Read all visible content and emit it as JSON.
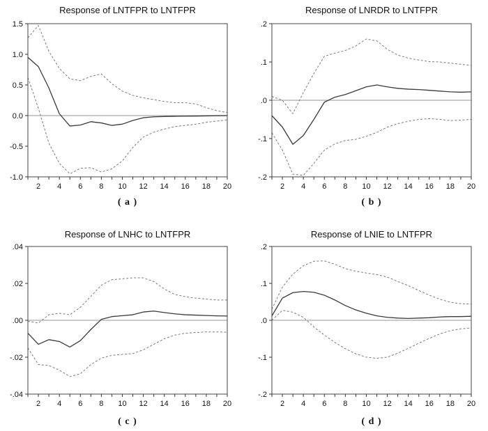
{
  "figure": {
    "description": "Impulse response functions (VAR) with two-standard-error confidence bands",
    "background": "#ffffff"
  },
  "colors": {
    "response_line": "#3a3a3a",
    "confidence_band": "#7a7a7a",
    "zero_line": "#aaaaaa",
    "frame": "#444444",
    "tick": "#333333",
    "text": "#111111"
  },
  "chart_data": [
    {
      "type": "line",
      "title": "Response of LNTFPR to LNTFPR",
      "caption": "( a )",
      "x": [
        1,
        2,
        3,
        4,
        5,
        6,
        7,
        8,
        9,
        10,
        11,
        12,
        13,
        14,
        15,
        16,
        17,
        18,
        19,
        20
      ],
      "xlim": [
        1,
        20
      ],
      "ylim": [
        -1.0,
        1.5
      ],
      "xtick_labels": [
        "2",
        "4",
        "6",
        "8",
        "10",
        "12",
        "14",
        "16",
        "18",
        "20"
      ],
      "xticks_labeled": [
        2,
        4,
        6,
        8,
        10,
        12,
        14,
        16,
        18,
        20
      ],
      "yticks": [
        {
          "v": 1.5,
          "label": "1.5"
        },
        {
          "v": 1.0,
          "label": "1.0"
        },
        {
          "v": 0.5,
          "label": "0.5"
        },
        {
          "v": 0.0,
          "label": "0.0"
        },
        {
          "v": -0.5,
          "label": "-0.5"
        },
        {
          "v": -1.0,
          "label": "-1.0"
        }
      ],
      "grid": false,
      "zero_line": true,
      "legend": "none",
      "series": [
        {
          "name": "upper_band",
          "style": "dashed",
          "values": [
            1.27,
            1.47,
            1.05,
            0.77,
            0.6,
            0.57,
            0.64,
            0.68,
            0.52,
            0.4,
            0.33,
            0.29,
            0.26,
            0.23,
            0.21,
            0.21,
            0.19,
            0.13,
            0.08,
            0.05
          ]
        },
        {
          "name": "lower_band",
          "style": "dashed",
          "values": [
            0.62,
            0.12,
            -0.45,
            -0.78,
            -0.95,
            -0.86,
            -0.85,
            -0.92,
            -0.87,
            -0.74,
            -0.52,
            -0.35,
            -0.27,
            -0.22,
            -0.18,
            -0.16,
            -0.14,
            -0.11,
            -0.09,
            -0.07
          ]
        },
        {
          "name": "response",
          "style": "solid",
          "values": [
            0.95,
            0.8,
            0.45,
            0.03,
            -0.17,
            -0.155,
            -0.1,
            -0.12,
            -0.16,
            -0.14,
            -0.08,
            -0.035,
            -0.02,
            -0.015,
            -0.012,
            -0.01,
            -0.008,
            -0.005,
            -0.002,
            0.0
          ]
        }
      ]
    },
    {
      "type": "line",
      "title": "Response of LNRDR to LNTFPR",
      "caption": "( b )",
      "x": [
        1,
        2,
        3,
        4,
        5,
        6,
        7,
        8,
        9,
        10,
        11,
        12,
        13,
        14,
        15,
        16,
        17,
        18,
        19,
        20
      ],
      "xlim": [
        1,
        20
      ],
      "ylim": [
        -0.2,
        0.2
      ],
      "xtick_labels": [
        "2",
        "4",
        "6",
        "8",
        "10",
        "12",
        "14",
        "16",
        "18",
        "20"
      ],
      "xticks_labeled": [
        2,
        4,
        6,
        8,
        10,
        12,
        14,
        16,
        18,
        20
      ],
      "yticks": [
        {
          "v": 0.2,
          "label": ".2"
        },
        {
          "v": 0.1,
          "label": ".1"
        },
        {
          "v": 0.0,
          "label": ".0"
        },
        {
          "v": -0.1,
          "label": "-.1"
        },
        {
          "v": -0.2,
          "label": "-.2"
        }
      ],
      "grid": false,
      "zero_line": true,
      "legend": "none",
      "series": [
        {
          "name": "upper_band",
          "style": "dashed",
          "values": [
            0.01,
            0.0,
            -0.035,
            0.02,
            0.07,
            0.115,
            0.123,
            0.13,
            0.142,
            0.16,
            0.155,
            0.133,
            0.118,
            0.11,
            0.105,
            0.101,
            0.1,
            0.097,
            0.094,
            0.091
          ]
        },
        {
          "name": "lower_band",
          "style": "dashed",
          "values": [
            -0.085,
            -0.13,
            -0.193,
            -0.196,
            -0.165,
            -0.13,
            -0.114,
            -0.105,
            -0.102,
            -0.094,
            -0.084,
            -0.07,
            -0.061,
            -0.055,
            -0.05,
            -0.048,
            -0.05,
            -0.053,
            -0.052,
            -0.05
          ]
        },
        {
          "name": "response",
          "style": "solid",
          "values": [
            -0.04,
            -0.07,
            -0.115,
            -0.092,
            -0.05,
            -0.005,
            0.008,
            0.015,
            0.025,
            0.035,
            0.04,
            0.035,
            0.031,
            0.029,
            0.028,
            0.026,
            0.024,
            0.022,
            0.021,
            0.022
          ]
        }
      ]
    },
    {
      "type": "line",
      "title": "Response of LNHC to LNTFPR",
      "caption": "( c )",
      "x": [
        1,
        2,
        3,
        4,
        5,
        6,
        7,
        8,
        9,
        10,
        11,
        12,
        13,
        14,
        15,
        16,
        17,
        18,
        19,
        20
      ],
      "xlim": [
        1,
        20
      ],
      "ylim": [
        -0.04,
        0.04
      ],
      "xtick_labels": [
        "2",
        "4",
        "6",
        "8",
        "10",
        "12",
        "14",
        "16",
        "18",
        "20"
      ],
      "xticks_labeled": [
        2,
        4,
        6,
        8,
        10,
        12,
        14,
        16,
        18,
        20
      ],
      "yticks": [
        {
          "v": 0.04,
          "label": ".04"
        },
        {
          "v": 0.02,
          "label": ".02"
        },
        {
          "v": 0.0,
          "label": ".00"
        },
        {
          "v": -0.02,
          "label": "-.02"
        },
        {
          "v": -0.04,
          "label": "-.04"
        }
      ],
      "grid": false,
      "zero_line": true,
      "legend": "none",
      "series": [
        {
          "name": "upper_band",
          "style": "dashed",
          "values": [
            -0.0005,
            -0.0015,
            0.003,
            0.0038,
            0.003,
            0.007,
            0.013,
            0.019,
            0.022,
            0.0225,
            0.023,
            0.023,
            0.021,
            0.017,
            0.014,
            0.0128,
            0.012,
            0.0115,
            0.011,
            0.011
          ]
        },
        {
          "name": "lower_band",
          "style": "dashed",
          "values": [
            -0.015,
            -0.024,
            -0.0245,
            -0.027,
            -0.0305,
            -0.029,
            -0.024,
            -0.0205,
            -0.019,
            -0.0185,
            -0.018,
            -0.016,
            -0.013,
            -0.01,
            -0.008,
            -0.007,
            -0.0066,
            -0.0063,
            -0.0063,
            -0.0065
          ]
        },
        {
          "name": "response",
          "style": "solid",
          "values": [
            -0.007,
            -0.013,
            -0.0105,
            -0.0115,
            -0.0145,
            -0.011,
            -0.005,
            0.0005,
            0.002,
            0.0025,
            0.003,
            0.0045,
            0.005,
            0.0042,
            0.0035,
            0.003,
            0.0028,
            0.0026,
            0.0024,
            0.0023
          ]
        }
      ]
    },
    {
      "type": "line",
      "title": "Response of LNIE to LNTFPR",
      "caption": "( d )",
      "x": [
        1,
        2,
        3,
        4,
        5,
        6,
        7,
        8,
        9,
        10,
        11,
        12,
        13,
        14,
        15,
        16,
        17,
        18,
        19,
        20
      ],
      "xlim": [
        1,
        20
      ],
      "ylim": [
        -0.2,
        0.2
      ],
      "xtick_labels": [
        "2",
        "4",
        "6",
        "8",
        "10",
        "12",
        "14",
        "16",
        "18",
        "20"
      ],
      "xticks_labeled": [
        2,
        4,
        6,
        8,
        10,
        12,
        14,
        16,
        18,
        20
      ],
      "yticks": [
        {
          "v": 0.2,
          "label": ".2"
        },
        {
          "v": 0.1,
          "label": ".1"
        },
        {
          "v": 0.0,
          "label": ".0"
        },
        {
          "v": -0.1,
          "label": "-.1"
        },
        {
          "v": -0.2,
          "label": "-.2"
        }
      ],
      "grid": false,
      "zero_line": true,
      "legend": "none",
      "series": [
        {
          "name": "upper_band",
          "style": "dashed",
          "values": [
            0.03,
            0.09,
            0.125,
            0.148,
            0.16,
            0.161,
            0.152,
            0.14,
            0.133,
            0.128,
            0.124,
            0.117,
            0.105,
            0.094,
            0.081,
            0.068,
            0.057,
            0.049,
            0.045,
            0.044
          ]
        },
        {
          "name": "lower_band",
          "style": "dashed",
          "values": [
            0.0,
            0.027,
            0.022,
            0.008,
            -0.018,
            -0.04,
            -0.06,
            -0.077,
            -0.091,
            -0.1,
            -0.103,
            -0.1,
            -0.089,
            -0.076,
            -0.062,
            -0.049,
            -0.037,
            -0.028,
            -0.023,
            -0.021
          ]
        },
        {
          "name": "response",
          "style": "solid",
          "values": [
            0.012,
            0.06,
            0.075,
            0.078,
            0.076,
            0.068,
            0.055,
            0.04,
            0.028,
            0.019,
            0.012,
            0.008,
            0.006,
            0.005,
            0.006,
            0.007,
            0.009,
            0.01,
            0.01,
            0.011
          ]
        }
      ]
    }
  ]
}
